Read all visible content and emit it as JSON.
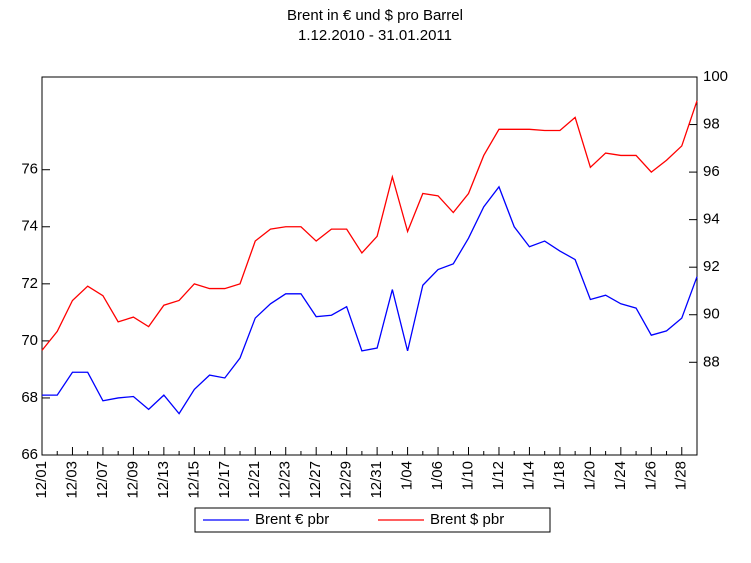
{
  "chart_data": {
    "type": "line",
    "title": "Brent in € und $ pro Barrel",
    "subtitle": "1.12.2010 - 31.01.2011",
    "categories": [
      "12/01",
      null,
      "12/03",
      null,
      "12/07",
      null,
      "12/09",
      null,
      "12/13",
      null,
      "12/15",
      null,
      "12/17",
      null,
      "12/21",
      null,
      "12/23",
      null,
      "12/27",
      null,
      "12/29",
      null,
      "12/31",
      null,
      "1/04",
      null,
      "1/06",
      null,
      "1/10",
      null,
      "1/12",
      null,
      "1/14",
      null,
      "1/18",
      null,
      "1/20",
      null,
      "1/24",
      null,
      "1/26",
      null,
      "1/28",
      null
    ],
    "series": [
      {
        "name": "Brent € pbr",
        "color": "#0000ff",
        "axis": "y",
        "values": [
          68.1,
          68.1,
          68.9,
          68.9,
          67.9,
          68.0,
          68.05,
          67.6,
          68.1,
          67.45,
          68.3,
          68.8,
          68.7,
          69.4,
          70.8,
          71.3,
          71.65,
          71.65,
          70.85,
          70.9,
          71.2,
          69.65,
          69.75,
          71.8,
          69.65,
          71.95,
          72.5,
          72.7,
          73.6,
          74.7,
          75.4,
          74.0,
          73.3,
          73.5,
          73.15,
          72.85,
          71.45,
          71.6,
          71.3,
          71.15,
          70.2,
          70.35,
          70.8,
          72.25
        ]
      },
      {
        "name": "Brent $ pbr",
        "color": "#ff0000",
        "axis": "y2",
        "values": [
          88.5,
          89.3,
          90.6,
          91.2,
          90.8,
          89.7,
          89.9,
          89.5,
          90.4,
          90.6,
          91.3,
          91.1,
          91.1,
          91.3,
          93.1,
          93.6,
          93.7,
          93.7,
          93.1,
          93.6,
          93.6,
          92.6,
          93.3,
          95.8,
          93.5,
          95.1,
          95.0,
          94.3,
          95.1,
          96.7,
          97.8,
          97.8,
          97.8,
          97.75,
          97.75,
          98.3,
          96.2,
          96.8,
          96.7,
          96.7,
          96.0,
          96.5,
          97.1,
          99.0
        ]
      }
    ],
    "ylim": [
      66,
      79.25
    ],
    "yticks": [
      66,
      68,
      70,
      72,
      74,
      76
    ],
    "y2lim": [
      84.1,
      100
    ],
    "y2ticks": [
      88,
      90,
      92,
      94,
      96,
      98,
      100
    ],
    "legend": "bottom"
  }
}
